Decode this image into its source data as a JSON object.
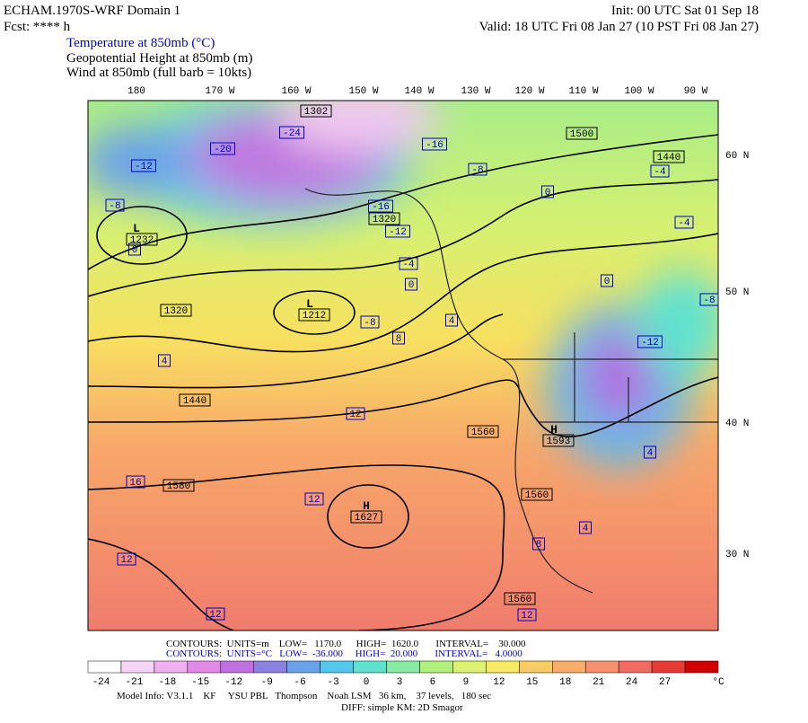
{
  "header": {
    "title": "ECHAM.1970S-WRF Domain 1",
    "init": "Init: 00 UTC Sat 01 Sep 18",
    "fcst": "Fcst: **** h",
    "valid": "Valid: 18 UTC Fri 08 Jan 27 (10 PST Fri 08 Jan 27)",
    "fields": [
      "Temperature at 850mb (°C)",
      "Geopotential Height at 850mb (m)",
      "Wind at 850mb (full barb = 10kts)"
    ]
  },
  "axes": {
    "lon_labels": [
      "180",
      "170 W",
      "160 W",
      "150 W",
      "140 W",
      "130 W",
      "120 W",
      "110 W",
      "100 W",
      "90 W"
    ],
    "lat_labels": [
      "60 N",
      "50 N",
      "40 N",
      "30 N"
    ]
  },
  "map_labels": [
    "1302",
    "-24",
    "-16",
    "-8",
    "1500",
    "1440",
    "-4",
    "0",
    "-20",
    "-12",
    "-8",
    "L",
    "1232",
    "0",
    "-16",
    "1320",
    "-12",
    "-4",
    "-4",
    "0",
    "0",
    "1320",
    "L",
    "1212",
    "-8",
    "4",
    "-12",
    "8",
    "-8",
    "4",
    "1440",
    "12",
    "1560",
    "H",
    "1593",
    "4",
    "16",
    "1580",
    "12",
    "H",
    "1627",
    "1560",
    "4",
    "8",
    "12",
    "12",
    "1560",
    "12"
  ],
  "footer": {
    "contours_height": "CONTOURS:  UNITS=m    LOW=   1170.0      HIGH=  1620.0       INTERVAL=    30.000",
    "contours_temp": "CONTOURS:  UNITS=°C   LOW=  -36.000     HIGH=  20.000       INTERVAL=   4.0000"
  },
  "colorbar": {
    "ticks": [
      -24,
      -21,
      -18,
      -15,
      -12,
      -9,
      -6,
      -3,
      0,
      3,
      6,
      9,
      12,
      15,
      18,
      21,
      24,
      27
    ],
    "unit": "°C",
    "colors": [
      "#ffffff",
      "#f6d4f6",
      "#eeb0ee",
      "#e08ae6",
      "#c070e0",
      "#8c80e0",
      "#6aa2ea",
      "#52c8ec",
      "#5ee2d0",
      "#86eaa2",
      "#b2f07e",
      "#dcf270",
      "#f8ea62",
      "#f8cc64",
      "#f8ae6a",
      "#f6906e",
      "#f06a62",
      "#e83a34",
      "#d00000"
    ]
  },
  "model_info": [
    "Model Info: V3.1.1    KF     YSU PBL   Thompson    Noah LSM   36 km,    37 levels,   180 sec",
    "DIFF: simple KM: 2D Smagor"
  ]
}
